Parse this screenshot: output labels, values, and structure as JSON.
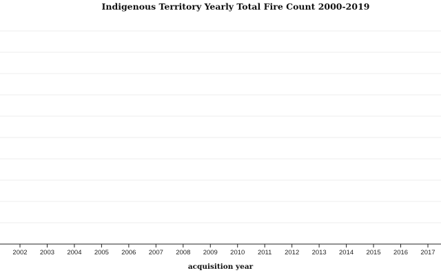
{
  "chart_data": {
    "type": "bar",
    "title": "Indigenous Territory Yearly Total Fire Count 2000-2019",
    "x_label": "acquisition year",
    "categories": [
      "2002",
      "2003",
      "2004",
      "2005",
      "2006",
      "2007",
      "2008",
      "2009",
      "2010",
      "2011",
      "2012",
      "2013",
      "2014",
      "2015",
      "2016",
      "2017"
    ],
    "grid": true
  }
}
